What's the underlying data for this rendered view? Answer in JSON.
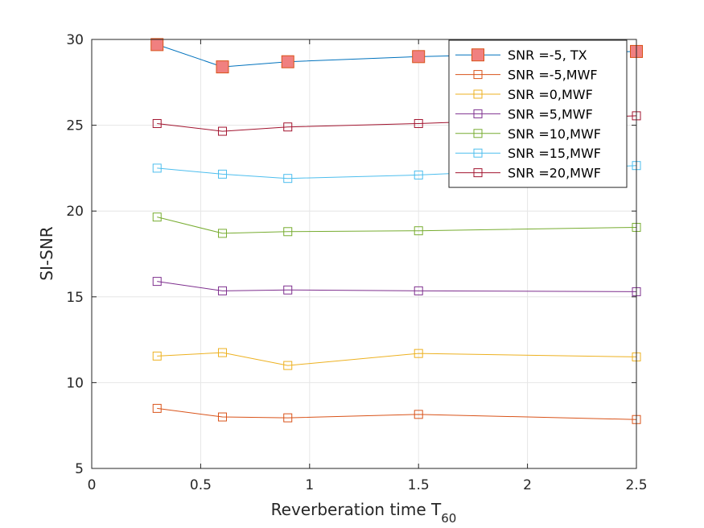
{
  "chart_data": {
    "type": "line",
    "xlabel": "Reverberation time T",
    "xlabel_subscript": "60",
    "ylabel": "SI-SNR",
    "xlim": [
      0,
      2.5
    ],
    "ylim": [
      5,
      30
    ],
    "xticks": [
      0,
      0.5,
      1,
      1.5,
      2,
      2.5
    ],
    "xtick_labels": [
      "0",
      "0.5",
      "1",
      "1.5",
      "2",
      "2.5"
    ],
    "yticks": [
      5,
      10,
      15,
      20,
      25,
      30
    ],
    "ytick_labels": [
      "5",
      "10",
      "15",
      "20",
      "25",
      "30"
    ],
    "grid": true,
    "legend_position": "top-right",
    "x": [
      0.3,
      0.6,
      0.9,
      1.5,
      2.5
    ],
    "series": [
      {
        "name": "SNR =-5, TX",
        "color": "#0072BD",
        "marker": "square-filled",
        "marker_face": "#F08080",
        "marker_edge": "#D95319",
        "values": [
          29.7,
          28.4,
          28.7,
          29.0,
          29.3
        ]
      },
      {
        "name": "SNR =-5,MWF",
        "color": "#D95319",
        "marker": "square-open",
        "values": [
          8.5,
          8.0,
          7.95,
          8.15,
          7.85
        ]
      },
      {
        "name": "SNR =0,MWF",
        "color": "#EDB120",
        "marker": "square-open",
        "values": [
          11.55,
          11.75,
          11.0,
          11.7,
          11.5
        ]
      },
      {
        "name": "SNR =5,MWF",
        "color": "#7E2F8E",
        "marker": "square-open",
        "values": [
          15.9,
          15.35,
          15.4,
          15.35,
          15.3
        ]
      },
      {
        "name": "SNR =10,MWF",
        "color": "#77AC30",
        "marker": "square-open",
        "values": [
          19.65,
          18.7,
          18.8,
          18.85,
          19.05
        ]
      },
      {
        "name": "SNR =15,MWF",
        "color": "#4DBEEE",
        "marker": "square-open",
        "values": [
          22.5,
          22.15,
          21.9,
          22.1,
          22.65
        ]
      },
      {
        "name": "SNR =20,MWF",
        "color": "#A2142F",
        "marker": "square-open",
        "values": [
          25.1,
          24.65,
          24.9,
          25.1,
          25.55
        ]
      }
    ]
  }
}
